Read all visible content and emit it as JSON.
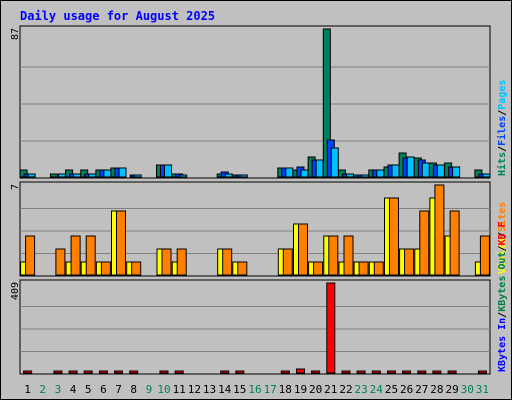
{
  "chart_data": {
    "type": "bar",
    "title": "Daily usage for August 2025",
    "days": [
      "1",
      "2",
      "3",
      "4",
      "5",
      "6",
      "7",
      "8",
      "9",
      "10",
      "11",
      "12",
      "13",
      "14",
      "15",
      "16",
      "17",
      "18",
      "19",
      "20",
      "21",
      "22",
      "23",
      "24",
      "25",
      "26",
      "27",
      "28",
      "29",
      "30",
      "31"
    ],
    "weekend_days": [
      "2",
      "3",
      "9",
      "10",
      "16",
      "17",
      "23",
      "24",
      "30",
      "31"
    ],
    "colors": {
      "hits": "#00805c",
      "files": "#0040ff",
      "pages": "#00c0ff",
      "visits": "#ffff00",
      "sites": "#ff8000",
      "kbf": "#ff0000",
      "kbin": "#0000ff",
      "kbout": "#008040",
      "weekend": "#00805c",
      "weekday": "#000000"
    },
    "panels": [
      {
        "id": "hits",
        "max_label": "87",
        "ymax": 87,
        "legend": [
          {
            "text": "Hits",
            "color": "#00805c"
          },
          {
            "text": "/",
            "color": "#000000"
          },
          {
            "text": "Files",
            "color": "#0040ff"
          },
          {
            "text": "/",
            "color": "#000000"
          },
          {
            "text": "Pages",
            "color": "#00c0ff"
          }
        ],
        "series": [
          {
            "name": "Hits",
            "color": "#00805c",
            "values": [
              4,
              0,
              2,
              4,
              4,
              4,
              5,
              0,
              0,
              7,
              2,
              0,
              0,
              2,
              1,
              0,
              0,
              5,
              4,
              12,
              87,
              4,
              1,
              4,
              6,
              14,
              11,
              8,
              8,
              0,
              4
            ]
          },
          {
            "name": "Files",
            "color": "#0040ff",
            "values": [
              2,
              0,
              0,
              2,
              2,
              4,
              5,
              1,
              0,
              7,
              2,
              0,
              0,
              3,
              1,
              0,
              0,
              5,
              6,
              10,
              22,
              2,
              1,
              4,
              7,
              11,
              10,
              7,
              6,
              0,
              2
            ]
          },
          {
            "name": "Pages",
            "color": "#00c0ff",
            "values": [
              2,
              0,
              2,
              2,
              2,
              4,
              5,
              1,
              0,
              7,
              1,
              0,
              0,
              2,
              1,
              0,
              0,
              5,
              4,
              10,
              17,
              2,
              1,
              4,
              7,
              12,
              8,
              7,
              6,
              0,
              2
            ]
          }
        ]
      },
      {
        "id": "visits",
        "max_label": "7",
        "ymax": 7,
        "legend": [
          {
            "text": "Visits",
            "color": "#ffff00"
          },
          {
            "text": "/",
            "color": "#000000"
          },
          {
            "text": "Sites",
            "color": "#ff8000"
          }
        ],
        "series": [
          {
            "name": "Visits",
            "color": "#ffff00",
            "values": [
              1,
              0,
              0,
              1,
              1,
              1,
              5,
              1,
              0,
              2,
              1,
              0,
              0,
              2,
              1,
              0,
              0,
              2,
              4,
              1,
              3,
              1,
              1,
              1,
              6,
              2,
              2,
              6,
              3,
              0,
              1
            ]
          },
          {
            "name": "Sites",
            "color": "#ff8000",
            "values": [
              3,
              0,
              2,
              3,
              3,
              1,
              5,
              1,
              0,
              2,
              2,
              0,
              0,
              2,
              1,
              0,
              0,
              2,
              4,
              1,
              3,
              3,
              1,
              1,
              6,
              2,
              5,
              7,
              5,
              0,
              3
            ]
          }
        ]
      },
      {
        "id": "kbytes",
        "max_label": "409",
        "ymax": 409,
        "legend": [
          {
            "text": "KBytes In",
            "color": "#0000ff"
          },
          {
            "text": "/",
            "color": "#000000"
          },
          {
            "text": "KBytes Out",
            "color": "#008040"
          },
          {
            "text": "/",
            "color": "#000000"
          },
          {
            "text": "KB F",
            "color": "#ff0000"
          }
        ],
        "series": [
          {
            "name": "KB F",
            "color": "#ff0000",
            "values": [
              5,
              0,
              5,
              5,
              5,
              5,
              5,
              5,
              0,
              10,
              10,
              0,
              0,
              5,
              5,
              0,
              0,
              5,
              20,
              10,
              409,
              5,
              5,
              5,
              5,
              10,
              10,
              5,
              10,
              0,
              5
            ]
          }
        ]
      }
    ]
  }
}
